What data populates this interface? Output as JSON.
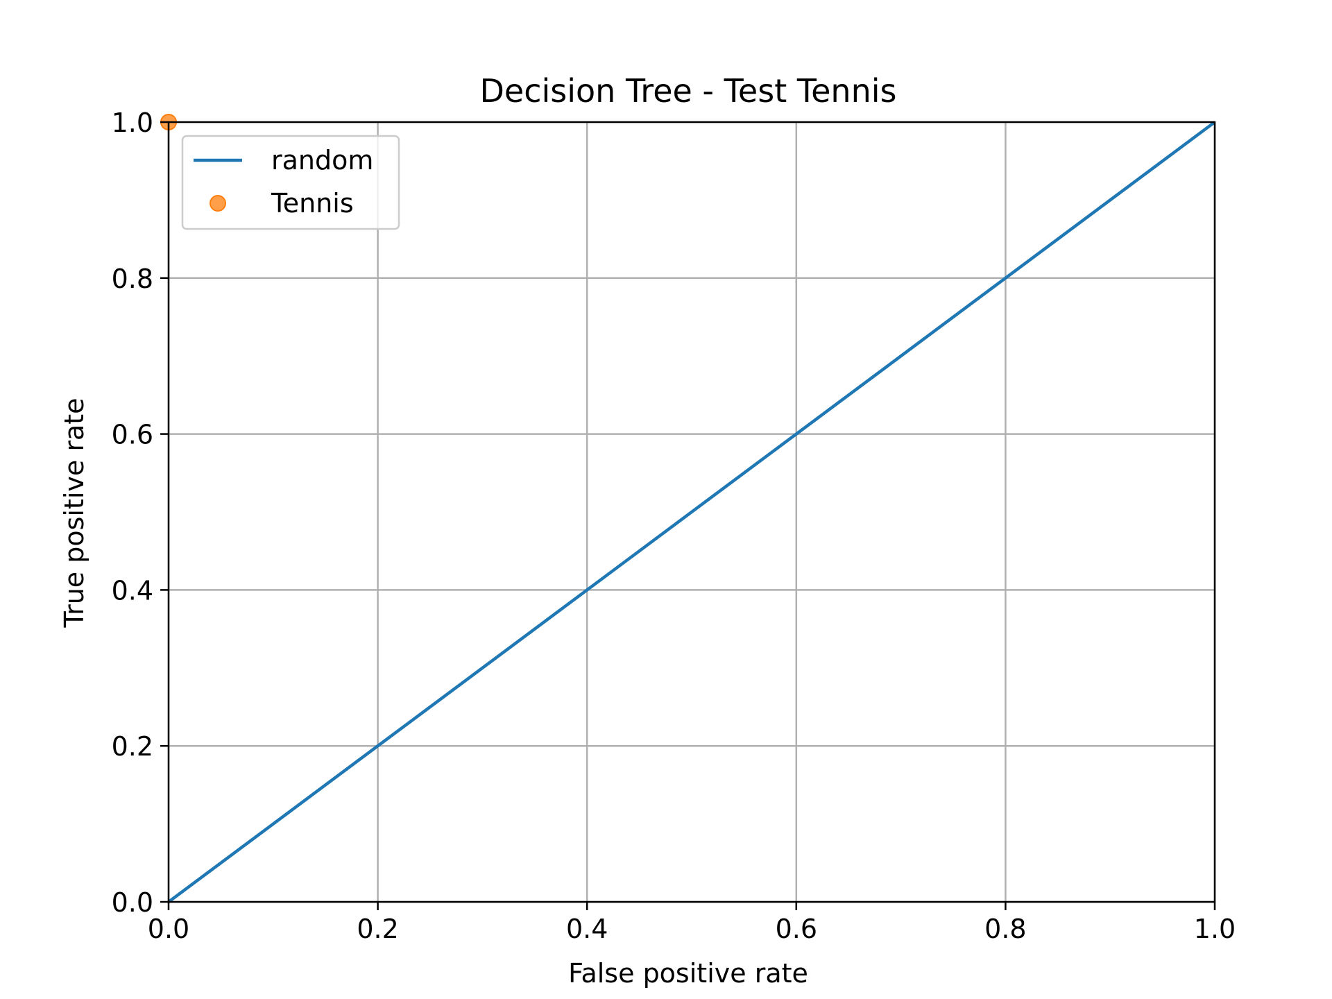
{
  "chart_data": {
    "type": "line",
    "title": "Decision Tree - Test Tennis",
    "xlabel": "False positive rate",
    "ylabel": "True positive rate",
    "xlim": [
      0.0,
      1.0
    ],
    "ylim": [
      0.0,
      1.0
    ],
    "xticks": [
      "0.0",
      "0.2",
      "0.4",
      "0.6",
      "0.8",
      "1.0"
    ],
    "yticks": [
      "0.0",
      "0.2",
      "0.4",
      "0.6",
      "0.8",
      "1.0"
    ],
    "grid": true,
    "legend_position": "upper-left",
    "series": [
      {
        "name": "random",
        "kind": "line",
        "color": "#1f77b4",
        "x": [
          0.0,
          1.0
        ],
        "y": [
          0.0,
          1.0
        ]
      },
      {
        "name": "Tennis",
        "kind": "marker",
        "color": "#ff7f0e",
        "x": [
          0.0
        ],
        "y": [
          1.0
        ]
      }
    ]
  }
}
